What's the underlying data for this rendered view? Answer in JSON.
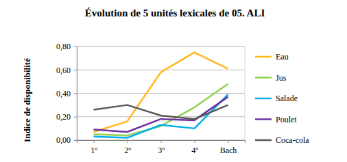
{
  "chart_data": {
    "type": "line",
    "title": "Évolution de 5 unités lexicales de 05. ALI",
    "y_label": "Indice de disponibilité",
    "categories": [
      "1º",
      "2º",
      "3º",
      "4º",
      "Bach"
    ],
    "series": [
      {
        "name": "Eau",
        "color": "#ffb81c",
        "values": [
          0.07,
          0.16,
          0.58,
          0.75,
          0.61
        ]
      },
      {
        "name": "Jus",
        "color": "#92d050",
        "values": [
          0.05,
          0.04,
          0.12,
          0.28,
          0.48
        ]
      },
      {
        "name": "Salade",
        "color": "#00b0f0",
        "values": [
          0.03,
          0.02,
          0.13,
          0.1,
          0.39
        ]
      },
      {
        "name": "Poulet",
        "color": "#7030a0",
        "values": [
          0.09,
          0.07,
          0.18,
          0.17,
          0.37
        ]
      },
      {
        "name": "Coca-cola",
        "color": "#595959",
        "values": [
          0.26,
          0.3,
          0.21,
          0.18,
          0.3
        ]
      }
    ],
    "ylim": [
      0,
      0.8
    ],
    "yticks": [
      {
        "value": 0,
        "label": "0,00"
      },
      {
        "value": 0.2,
        "label": "0,20"
      },
      {
        "value": 0.4,
        "label": "0,40"
      },
      {
        "value": 0.6,
        "label": "0,60"
      },
      {
        "value": 0.8,
        "label": "0,80"
      }
    ],
    "grid": true,
    "legend": "right"
  }
}
